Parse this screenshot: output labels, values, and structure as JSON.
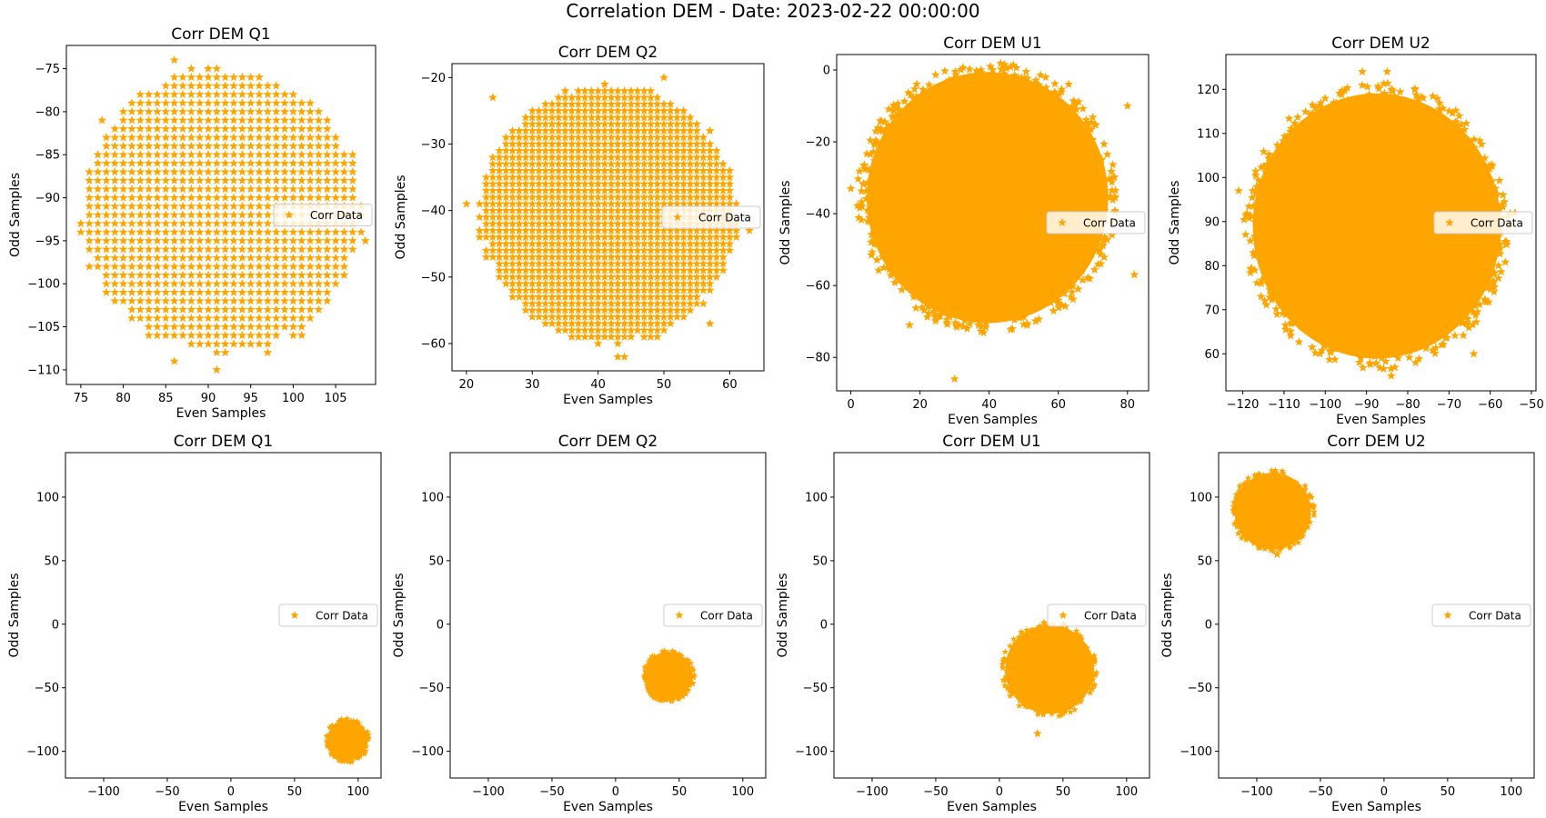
{
  "figure": {
    "suptitle": "Correlation DEM - Date: 2023-02-22 00:00:00",
    "marker_color": "#ffa500",
    "marker": "star"
  },
  "chart_data": [
    {
      "type": "scatter",
      "title": "Corr DEM Q1",
      "xlabel": "Even Samples",
      "ylabel": "Odd Samples",
      "legend": "Corr Data",
      "legend_loc": "center-right",
      "grid": false,
      "xlim": [
        73.3,
        109.7
      ],
      "ylim": [
        -111.7,
        -72.3
      ],
      "xticks": [
        75,
        80,
        85,
        90,
        95,
        100,
        105
      ],
      "yticks": [
        -75,
        -80,
        -85,
        -90,
        -95,
        -100,
        -105,
        -110
      ],
      "cloud": {
        "center": [
          91.5,
          -91.5
        ],
        "radius": [
          16.5,
          16.5
        ],
        "grid_step": 1
      },
      "outliers": [
        [
          86,
          -74
        ],
        [
          91,
          -110
        ],
        [
          86,
          -109
        ],
        [
          97,
          -108
        ],
        [
          75,
          -93
        ],
        [
          108.5,
          -95
        ],
        [
          77.5,
          -81
        ],
        [
          101,
          -106
        ]
      ]
    },
    {
      "type": "scatter",
      "title": "Corr DEM Q2",
      "xlabel": "Even Samples",
      "ylabel": "Odd Samples",
      "legend": "Corr Data",
      "legend_loc": "center-right",
      "grid": false,
      "xlim": [
        17.8,
        65.2
      ],
      "ylim": [
        -64.1,
        -17.9
      ],
      "xticks": [
        20,
        30,
        40,
        50,
        60
      ],
      "yticks": [
        -20,
        -30,
        -40,
        -50,
        -60
      ],
      "cloud": {
        "center": [
          41.5,
          -40.5
        ],
        "radius": [
          19.5,
          19.5
        ],
        "grid_step": 1
      },
      "outliers": [
        [
          43,
          -62
        ],
        [
          44,
          -62
        ],
        [
          20,
          -39
        ],
        [
          63,
          -43
        ],
        [
          50,
          -20
        ],
        [
          24,
          -23
        ],
        [
          57,
          -57
        ]
      ]
    },
    {
      "type": "scatter",
      "title": "Corr DEM U1",
      "xlabel": "Even Samples",
      "ylabel": "Odd Samples",
      "legend": "Corr Data",
      "legend_loc": "center-right",
      "grid": false,
      "xlim": [
        -4.1,
        86.1
      ],
      "ylim": [
        -89.3,
        4.3
      ],
      "xticks": [
        0,
        20,
        40,
        60,
        80
      ],
      "yticks": [
        0,
        -20,
        -40,
        -60,
        -80
      ],
      "cloud": {
        "center": [
          39.5,
          -35.5
        ],
        "radius": [
          36,
          36
        ],
        "grid_step": 0
      },
      "outliers": [
        [
          30,
          -86
        ],
        [
          0,
          -33
        ],
        [
          80,
          -10
        ],
        [
          41,
          0
        ],
        [
          82,
          -57
        ],
        [
          17,
          -71
        ],
        [
          63,
          -4
        ]
      ]
    },
    {
      "type": "scatter",
      "title": "Corr DEM U2",
      "xlabel": "Even Samples",
      "ylabel": "Odd Samples",
      "legend": "Corr Data",
      "legend_loc": "center-right",
      "grid": false,
      "xlim": [
        -124.1,
        -48.9
      ],
      "ylim": [
        51.6,
        127.9
      ],
      "xticks": [
        -120,
        -110,
        -100,
        -90,
        -80,
        -70,
        -60,
        -50
      ],
      "yticks": [
        60,
        70,
        80,
        90,
        100,
        110,
        120
      ],
      "cloud": {
        "center": [
          -87.5,
          89
        ],
        "radius": [
          31,
          31
        ],
        "grid_step": 0
      },
      "outliers": [
        [
          -84,
          55
        ],
        [
          -91,
          124
        ],
        [
          -85,
          124
        ],
        [
          -121,
          97
        ],
        [
          -54,
          92
        ],
        [
          -58,
          80
        ],
        [
          -64,
          60
        ]
      ]
    },
    {
      "type": "scatter",
      "title": "Corr DEM Q1",
      "xlabel": "Even Samples",
      "ylabel": "Odd Samples",
      "legend": "Corr Data",
      "legend_loc": "center-right",
      "grid": false,
      "xlim": [
        -130,
        118
      ],
      "ylim": [
        -121,
        135
      ],
      "xticks": [
        -100,
        -50,
        0,
        50,
        100
      ],
      "yticks": [
        100,
        50,
        0,
        -50,
        -100
      ],
      "cloud": {
        "center": [
          91.5,
          -91.5
        ],
        "radius": [
          16.5,
          16.5
        ],
        "grid_step": 0
      },
      "outliers": []
    },
    {
      "type": "scatter",
      "title": "Corr DEM Q2",
      "xlabel": "Even Samples",
      "ylabel": "Odd Samples",
      "legend": "Corr Data",
      "legend_loc": "center-right",
      "grid": false,
      "xlim": [
        -130,
        118
      ],
      "ylim": [
        -121,
        135
      ],
      "xticks": [
        -100,
        -50,
        0,
        50,
        100
      ],
      "yticks": [
        100,
        50,
        0,
        -50,
        -100
      ],
      "cloud": {
        "center": [
          41.5,
          -40.5
        ],
        "radius": [
          19.5,
          19.5
        ],
        "grid_step": 0
      },
      "outliers": []
    },
    {
      "type": "scatter",
      "title": "Corr DEM U1",
      "xlabel": "Even Samples",
      "ylabel": "Odd Samples",
      "legend": "Corr Data",
      "legend_loc": "center-right",
      "grid": false,
      "xlim": [
        -130,
        118
      ],
      "ylim": [
        -121,
        135
      ],
      "xticks": [
        -100,
        -50,
        0,
        50,
        100
      ],
      "yticks": [
        100,
        50,
        0,
        -50,
        -100
      ],
      "cloud": {
        "center": [
          39.5,
          -35.5
        ],
        "radius": [
          36,
          36
        ],
        "grid_step": 0
      },
      "outliers": [
        [
          30,
          -86
        ]
      ]
    },
    {
      "type": "scatter",
      "title": "Corr DEM U2",
      "xlabel": "Even Samples",
      "ylabel": "Odd Samples",
      "legend": "Corr Data",
      "legend_loc": "center-right",
      "grid": false,
      "xlim": [
        -130,
        118
      ],
      "ylim": [
        -121,
        135
      ],
      "xticks": [
        -100,
        -50,
        0,
        50,
        100
      ],
      "yticks": [
        100,
        50,
        0,
        -50,
        -100
      ],
      "cloud": {
        "center": [
          -87.5,
          89
        ],
        "radius": [
          31,
          31
        ],
        "grid_step": 0
      },
      "outliers": [
        [
          -84,
          55
        ]
      ]
    }
  ]
}
